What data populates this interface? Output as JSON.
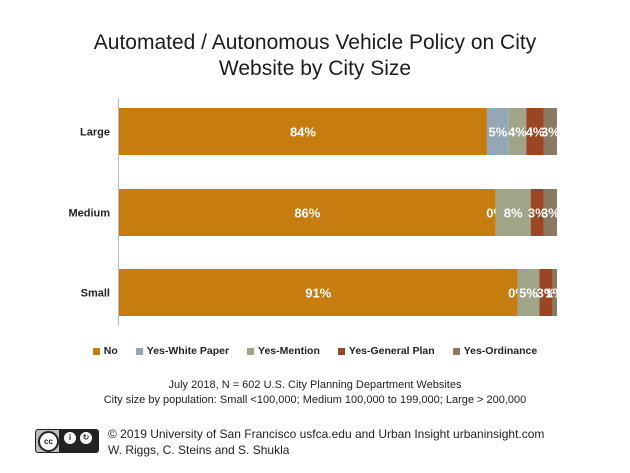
{
  "title_lines": [
    "Automated / Autonomous Vehicle Policy on City",
    "Website by City Size"
  ],
  "chart_data": {
    "type": "bar",
    "orientation": "horizontal",
    "stacked": true,
    "categories": [
      "Large",
      "Medium",
      "Small"
    ],
    "series": [
      {
        "name": "No",
        "color": "#c67c0f",
        "values": [
          84,
          86,
          91
        ],
        "labels": [
          "84%",
          "86%",
          "91%"
        ]
      },
      {
        "name": "Yes-White Paper",
        "color": "#93a8b4",
        "values": [
          5,
          0,
          0
        ],
        "labels": [
          "5%",
          "0%",
          "0%"
        ]
      },
      {
        "name": "Yes-Mention",
        "color": "#a0a587",
        "values": [
          4,
          8,
          5
        ],
        "labels": [
          "4%",
          "8%",
          "5%"
        ]
      },
      {
        "name": "Yes-General Plan",
        "color": "#9a4523",
        "values": [
          4,
          3,
          3
        ],
        "labels": [
          "4%",
          "3%",
          "3%"
        ]
      },
      {
        "name": "Yes-Ordinance",
        "color": "#8b7a62",
        "values": [
          3,
          3,
          1
        ],
        "labels": [
          "3%",
          "3%",
          "1%"
        ]
      }
    ],
    "legend_position": "bottom",
    "grid": false
  },
  "notes": [
    "July 2018, N = 602 U.S. City Planning Department Websites",
    "City size by population:  Small <100,000; Medium 100,000 to 199,000; Large > 200,000"
  ],
  "footer": {
    "license_icon": "cc-by-sa-icon",
    "line1": "© 2019 University of San Francisco usfca.edu and Urban Insight urbaninsight.com",
    "line2": "W. Riggs, C. Steins and S. Shukla"
  }
}
